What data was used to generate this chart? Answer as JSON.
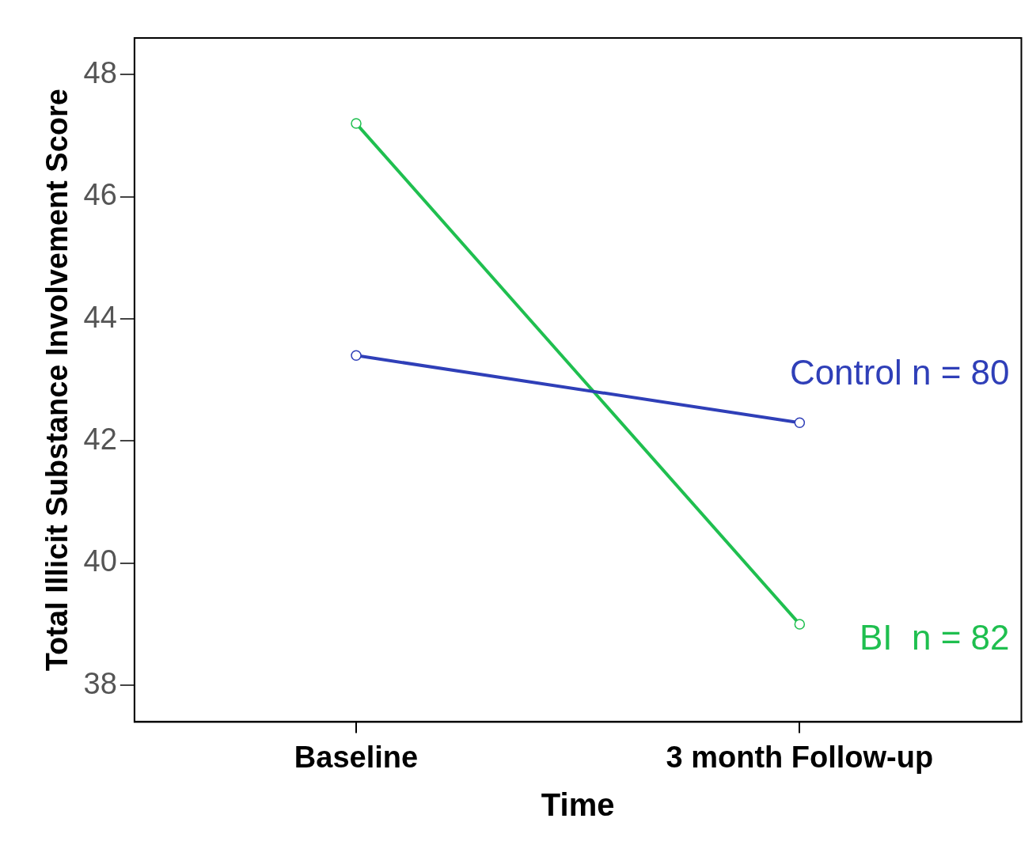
{
  "chart_data": {
    "type": "line",
    "xlabel": "Time",
    "ylabel": "Total Illicit Substance Involvement Score",
    "categories": [
      "Baseline",
      "3 month Follow-up"
    ],
    "series": [
      {
        "name": "Control n = 80",
        "color": "#2f3fb8",
        "values": [
          43.4,
          42.3
        ]
      },
      {
        "name": "BI  n = 82",
        "color": "#1fbf4f",
        "values": [
          47.2,
          39.0
        ]
      }
    ],
    "ylim": [
      37.4,
      48.6
    ],
    "yticks": [
      38,
      40,
      42,
      44,
      46,
      48
    ],
    "marker": "circle",
    "line_style": "solid",
    "legend": false
  }
}
